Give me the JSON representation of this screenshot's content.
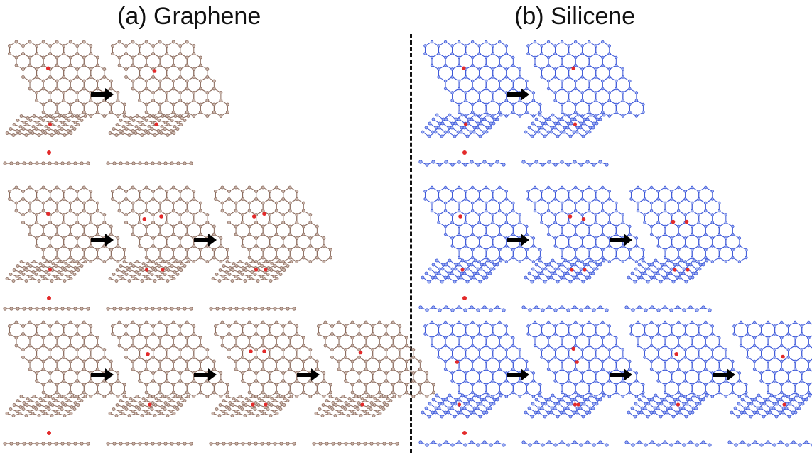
{
  "panels": [
    {
      "id": "a",
      "title": "(a) Graphene",
      "lattice_color": "#8a6a5c",
      "atom_fill": "#c9b4aa",
      "buckled": false,
      "rows": [
        {
          "states": [
            {
              "defects": [
                [
                  0.45,
                  0.35
                ]
              ]
            },
            {
              "defects": [
                [
                  0.5,
                  0.4
                ]
              ]
            }
          ]
        },
        {
          "states": [
            {
              "defects": [
                [
                  0.45,
                  0.35
                ]
              ]
            },
            {
              "defects": [
                [
                  0.35,
                  0.45
                ],
                [
                  0.6,
                  0.4
                ]
              ]
            },
            {
              "defects": [
                [
                  0.45,
                  0.4
                ],
                [
                  0.6,
                  0.35
                ]
              ]
            }
          ]
        },
        {
          "states": [
            {
              "defects": []
            },
            {
              "defects": [
                [
                  0.4,
                  0.45
                ]
              ]
            },
            {
              "defects": [
                [
                  0.4,
                  0.4
                ],
                [
                  0.6,
                  0.4
                ]
              ]
            },
            {
              "defects": [
                [
                  0.5,
                  0.42
                ]
              ]
            }
          ]
        }
      ]
    },
    {
      "id": "b",
      "title": "(b) Silicene",
      "lattice_color": "#3b56d8",
      "atom_fill": "#9fb0f2",
      "buckled": true,
      "rows": [
        {
          "states": [
            {
              "defects": [
                [
                  0.45,
                  0.35
                ]
              ]
            },
            {
              "defects": [
                [
                  0.55,
                  0.35
                ]
              ]
            }
          ]
        },
        {
          "states": [
            {
              "defects": [
                [
                  0.4,
                  0.4
                ]
              ]
            },
            {
              "defects": [
                [
                  0.5,
                  0.4
                ],
                [
                  0.7,
                  0.45
                ]
              ]
            },
            {
              "defects": [
                [
                  0.5,
                  0.5
                ],
                [
                  0.7,
                  0.5
                ]
              ]
            }
          ]
        },
        {
          "states": [
            {
              "defects": [
                [
                  0.35,
                  0.6
                ]
              ]
            },
            {
              "defects": [
                [
                  0.55,
                  0.35
                ],
                [
                  0.6,
                  0.6
                ]
              ]
            },
            {
              "defects": [
                [
                  0.55,
                  0.45
                ]
              ]
            },
            {
              "defects": [
                [
                  0.6,
                  0.5
                ]
              ]
            }
          ]
        }
      ]
    }
  ],
  "defect_color": "#e32a2a",
  "arrow_color": "#000000"
}
